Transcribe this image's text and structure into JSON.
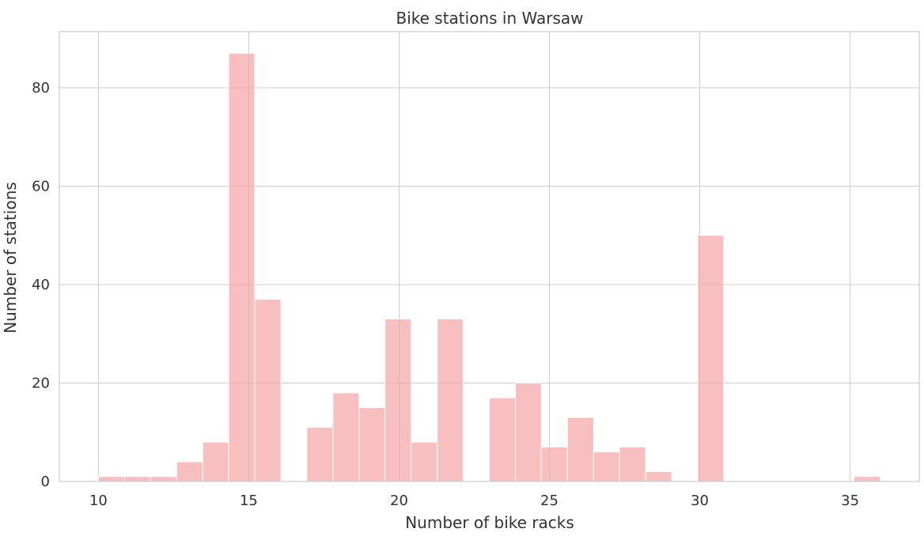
{
  "chart_data": {
    "type": "bar",
    "title": "Bike stations in Warsaw",
    "xlabel": "Number of bike racks",
    "ylabel": "Number of stations",
    "xlim": [
      8.7,
      37.3
    ],
    "ylim": [
      0,
      91.4
    ],
    "xticks": [
      10,
      15,
      20,
      25,
      30,
      35
    ],
    "yticks": [
      0,
      20,
      40,
      60,
      80
    ],
    "grid": true,
    "bar_color": "#f4a6a6",
    "bins": [
      {
        "x0": 10.0,
        "x1": 10.87,
        "value": 1
      },
      {
        "x0": 10.87,
        "x1": 11.73,
        "value": 1
      },
      {
        "x0": 11.73,
        "x1": 12.6,
        "value": 1
      },
      {
        "x0": 12.6,
        "x1": 13.47,
        "value": 4
      },
      {
        "x0": 13.47,
        "x1": 14.33,
        "value": 8
      },
      {
        "x0": 14.33,
        "x1": 15.2,
        "value": 87
      },
      {
        "x0": 15.2,
        "x1": 16.07,
        "value": 37
      },
      {
        "x0": 16.07,
        "x1": 16.93,
        "value": 0
      },
      {
        "x0": 16.93,
        "x1": 17.8,
        "value": 11
      },
      {
        "x0": 17.8,
        "x1": 18.67,
        "value": 18
      },
      {
        "x0": 18.67,
        "x1": 19.53,
        "value": 15
      },
      {
        "x0": 19.53,
        "x1": 20.4,
        "value": 33
      },
      {
        "x0": 20.4,
        "x1": 21.27,
        "value": 8
      },
      {
        "x0": 21.27,
        "x1": 22.13,
        "value": 33
      },
      {
        "x0": 22.13,
        "x1": 23.0,
        "value": 0
      },
      {
        "x0": 23.0,
        "x1": 23.87,
        "value": 17
      },
      {
        "x0": 23.87,
        "x1": 24.73,
        "value": 20
      },
      {
        "x0": 24.73,
        "x1": 25.6,
        "value": 7
      },
      {
        "x0": 25.6,
        "x1": 26.47,
        "value": 13
      },
      {
        "x0": 26.47,
        "x1": 27.33,
        "value": 6
      },
      {
        "x0": 27.33,
        "x1": 28.2,
        "value": 7
      },
      {
        "x0": 28.2,
        "x1": 29.07,
        "value": 2
      },
      {
        "x0": 29.07,
        "x1": 29.93,
        "value": 0
      },
      {
        "x0": 29.93,
        "x1": 30.8,
        "value": 50
      },
      {
        "x0": 30.8,
        "x1": 31.67,
        "value": 0
      },
      {
        "x0": 31.67,
        "x1": 32.53,
        "value": 0
      },
      {
        "x0": 32.53,
        "x1": 33.4,
        "value": 0
      },
      {
        "x0": 33.4,
        "x1": 34.27,
        "value": 0
      },
      {
        "x0": 34.27,
        "x1": 35.13,
        "value": 0
      },
      {
        "x0": 35.13,
        "x1": 36.0,
        "value": 1
      }
    ]
  }
}
